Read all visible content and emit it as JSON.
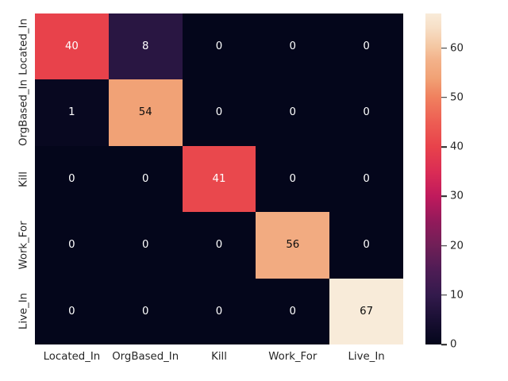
{
  "chart_data": {
    "type": "heatmap",
    "title": "",
    "xlabel": "",
    "ylabel": "",
    "x_categories": [
      "Located_In",
      "OrgBased_In",
      "Kill",
      "Work_For",
      "Live_In"
    ],
    "y_categories": [
      "Located_In",
      "OrgBased_In",
      "Kill",
      "Work_For",
      "Live_In"
    ],
    "matrix": [
      [
        40,
        8,
        0,
        0,
        0
      ],
      [
        1,
        54,
        0,
        0,
        0
      ],
      [
        0,
        0,
        41,
        0,
        0
      ],
      [
        0,
        0,
        0,
        56,
        0
      ],
      [
        0,
        0,
        0,
        0,
        67
      ]
    ],
    "vmin": 0,
    "vmax": 67,
    "colormap": "rocket",
    "grid": false,
    "annotated": true,
    "colorbar": {
      "position": "right",
      "ticks": [
        0,
        10,
        20,
        30,
        40,
        50,
        60
      ]
    }
  },
  "colors": {
    "background": "#ffffff",
    "tick_label": "#262626",
    "tick_mark": "#262626",
    "annotation_light": "#ffffff",
    "annotation_dark": "#0e0e0e",
    "colormap_stops": [
      [
        0.0,
        "#04061b"
      ],
      [
        0.075,
        "#190f33"
      ],
      [
        0.149,
        "#331a4c"
      ],
      [
        0.224,
        "#4e1c55"
      ],
      [
        0.299,
        "#701f57"
      ],
      [
        0.373,
        "#931a5b"
      ],
      [
        0.448,
        "#c01a5c"
      ],
      [
        0.52,
        "#da2c55"
      ],
      [
        0.597,
        "#e8424b"
      ],
      [
        0.67,
        "#ed5d53"
      ],
      [
        0.75,
        "#f0825f"
      ],
      [
        0.806,
        "#f1a276"
      ],
      [
        0.86,
        "#f3b28a"
      ],
      [
        0.896,
        "#f4c5a0"
      ],
      [
        0.96,
        "#f7e0c8"
      ],
      [
        1.0,
        "#f8ebd9"
      ]
    ]
  }
}
